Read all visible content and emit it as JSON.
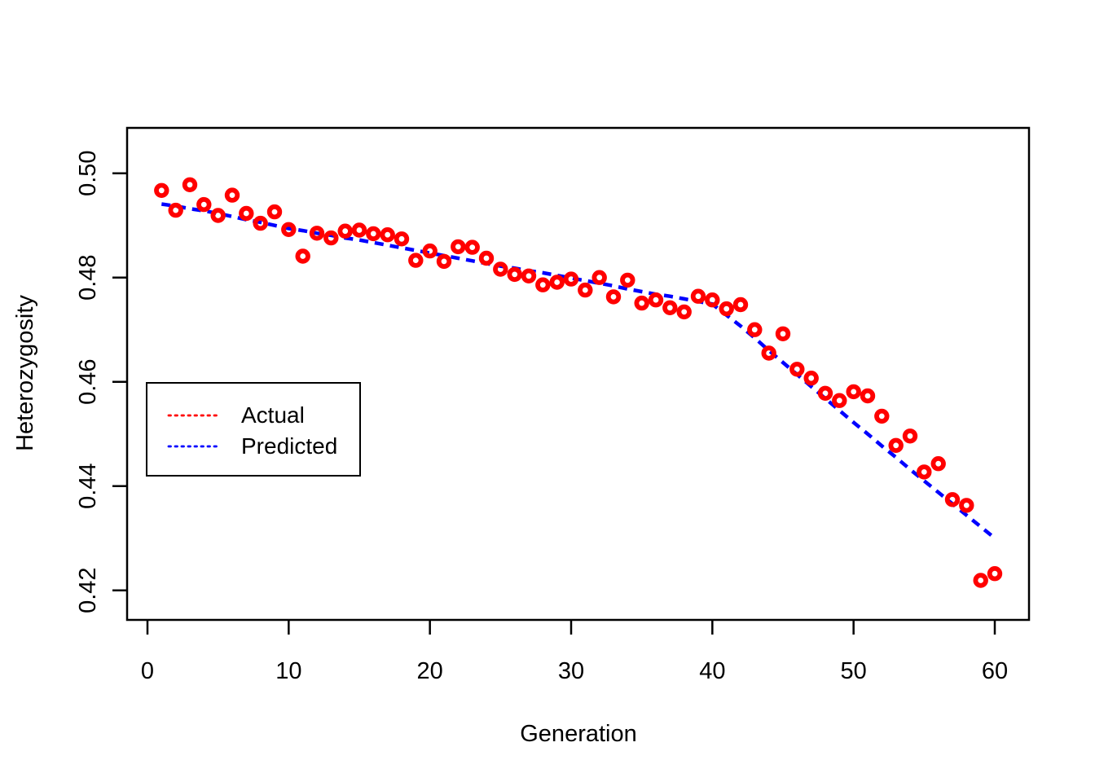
{
  "chart_data": {
    "type": "scatter",
    "title": "",
    "xlabel": "Generation",
    "ylabel": "Heterozygosity",
    "grid": false,
    "background_color": "#FFFFFF",
    "frame_color": "#000000",
    "x": [
      1,
      2,
      3,
      4,
      5,
      6,
      7,
      8,
      9,
      10,
      11,
      12,
      13,
      14,
      15,
      16,
      17,
      18,
      19,
      20,
      21,
      22,
      23,
      24,
      25,
      26,
      27,
      28,
      29,
      30,
      31,
      32,
      33,
      34,
      35,
      36,
      37,
      38,
      39,
      40,
      41,
      42,
      43,
      44,
      45,
      46,
      47,
      48,
      49,
      50,
      51,
      52,
      53,
      54,
      55,
      56,
      57,
      58,
      59,
      60
    ],
    "series": [
      {
        "name": "Actual",
        "marker": "open-circle",
        "color": "#FF0000",
        "values": [
          0.4967,
          0.4929,
          0.4978,
          0.494,
          0.4919,
          0.4958,
          0.4923,
          0.4904,
          0.4926,
          0.4892,
          0.4841,
          0.4885,
          0.4876,
          0.4889,
          0.4891,
          0.4884,
          0.4882,
          0.4874,
          0.4833,
          0.4851,
          0.4831,
          0.4859,
          0.4858,
          0.4837,
          0.4816,
          0.4806,
          0.4803,
          0.4786,
          0.4791,
          0.4797,
          0.4776,
          0.48,
          0.4763,
          0.4795,
          0.4751,
          0.4757,
          0.4742,
          0.4734,
          0.4764,
          0.4757,
          0.474,
          0.4748,
          0.47,
          0.4655,
          0.4692,
          0.4624,
          0.4607,
          0.4578,
          0.4564,
          0.4581,
          0.4573,
          0.4534,
          0.4478,
          0.4496,
          0.4427,
          0.4443,
          0.4374,
          0.4363,
          0.4219,
          0.4232
        ]
      },
      {
        "name": "Predicted",
        "marker": "dashed-line",
        "color": "#0000FF",
        "values": [
          0.4941,
          0.4937,
          0.4932,
          0.4928,
          0.4923,
          0.4917,
          0.4911,
          0.4906,
          0.49,
          0.4894,
          0.489,
          0.4885,
          0.4881,
          0.4876,
          0.4872,
          0.4867,
          0.4862,
          0.4857,
          0.4852,
          0.4847,
          0.4842,
          0.4837,
          0.4832,
          0.4827,
          0.4822,
          0.4818,
          0.4813,
          0.4809,
          0.4804,
          0.4799,
          0.4794,
          0.4789,
          0.4784,
          0.4778,
          0.4773,
          0.4768,
          0.4764,
          0.4759,
          0.4754,
          0.4749,
          0.4728,
          0.4707,
          0.4684,
          0.466,
          0.4637,
          0.4614,
          0.4591,
          0.4568,
          0.4545,
          0.4522,
          0.45,
          0.4477,
          0.4455,
          0.4432,
          0.441,
          0.4388,
          0.4366,
          0.4344,
          0.4322,
          0.43
        ]
      }
    ],
    "x_axis": {
      "ticks": [
        0,
        10,
        20,
        30,
        40,
        50,
        60
      ],
      "tick_labels": [
        "0",
        "10",
        "20",
        "30",
        "40",
        "50",
        "60"
      ],
      "range": [
        -1.5,
        62.5
      ]
    },
    "y_axis": {
      "ticks": [
        0.5,
        0.48,
        0.46,
        0.44,
        0.42
      ],
      "tick_labels": [
        "0.50",
        "0.48",
        "0.46",
        "0.44",
        "0.42"
      ],
      "range": [
        0.414,
        0.509
      ]
    },
    "legend": {
      "position": "middle-left",
      "border": true,
      "entries": [
        {
          "label": "Actual",
          "color": "#FF0000",
          "line_style": "dotted"
        },
        {
          "label": "Predicted",
          "color": "#0000FF",
          "line_style": "dotted"
        }
      ]
    }
  }
}
